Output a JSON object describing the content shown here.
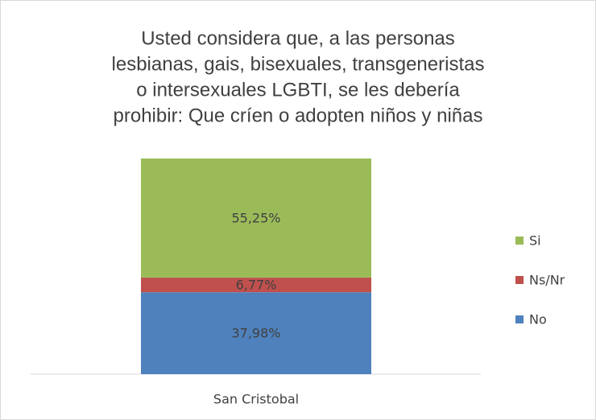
{
  "chart_data": {
    "type": "stacked_bar",
    "title": [
      "Usted considera que, a las personas",
      "lesbianas, gais, bisexuales, transgeneristas",
      "o intersexuales LGBTI, se les debería",
      "prohibir: Que críen o adopten niños y niñas"
    ],
    "categories": [
      "San Cristobal"
    ],
    "series": [
      {
        "name": "No",
        "color": "#4f81bd",
        "values": [
          37.98
        ],
        "value_labels": [
          "37,98%"
        ]
      },
      {
        "name": "Ns/Nr",
        "color": "#c0504d",
        "values": [
          6.77
        ],
        "value_labels": [
          "6,77%"
        ]
      },
      {
        "name": "Si",
        "color": "#9bbb59",
        "values": [
          55.25
        ],
        "value_labels": [
          "55,25%"
        ]
      }
    ],
    "ylim": [
      0,
      100
    ],
    "legend": "right"
  }
}
